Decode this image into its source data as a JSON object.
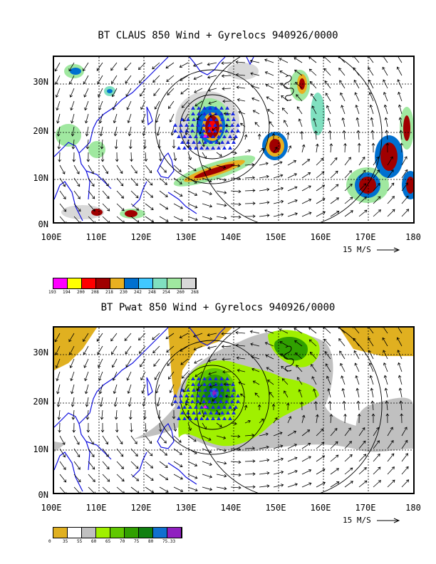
{
  "panel1": {
    "title": "BT CLAUS 850 Wind + Gyrelocs 940926/0000",
    "lat_labels": [
      "30N",
      "20N",
      "10N",
      "0N"
    ],
    "lon_labels": [
      "100E",
      "110E",
      "120E",
      "130E",
      "140E",
      "150E",
      "160E",
      "170E",
      "180"
    ],
    "speed_label": "15 M/S",
    "legend_colors": [
      "#ff00ff",
      "#ffff00",
      "#ff0000",
      "#a00000",
      "#e8b020",
      "#0070d0",
      "#40c8ff",
      "#80e0c0",
      "#a0e8a0",
      "#d8d8d8"
    ],
    "legend_ticks": [
      "193",
      "194",
      "200",
      "208",
      "218",
      "230",
      "242",
      "248",
      "254",
      "260",
      "268"
    ]
  },
  "panel2": {
    "title": "BT Pwat 850 Wind + Gyrelocs 940926/0000",
    "lat_labels": [
      "30N",
      "20N",
      "10N",
      "0N"
    ],
    "lon_labels": [
      "100E",
      "110E",
      "120E",
      "130E",
      "140E",
      "150E",
      "160E",
      "170E",
      "180"
    ],
    "speed_label": "15 M/S",
    "legend_colors": [
      "#e0b020",
      "#ffffff",
      "#c0c0c0",
      "#a0f000",
      "#60c800",
      "#30a000",
      "#108010",
      "#1070d0",
      "#9020c0"
    ],
    "legend_ticks": [
      "0",
      "35",
      "55",
      "60",
      "65",
      "70",
      "75",
      "80",
      "75.33"
    ]
  }
}
